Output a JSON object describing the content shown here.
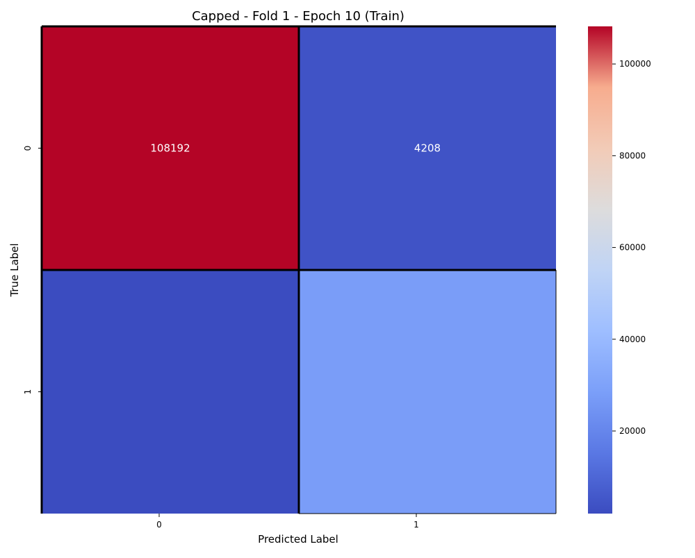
{
  "chart_data": {
    "type": "heatmap",
    "title": "Capped - Fold 1 - Epoch 10 (Train)",
    "xlabel": "Predicted Label",
    "ylabel": "True Label",
    "x_categories": [
      "0",
      "1"
    ],
    "y_categories": [
      "0",
      "1"
    ],
    "values": [
      [
        108192,
        4208
      ],
      [
        2000,
        28000
      ]
    ],
    "cell_labels": [
      [
        "108192",
        "4208"
      ],
      [
        "",
        ""
      ]
    ],
    "colormap": "coolwarm",
    "color_range": [
      2000,
      108192
    ],
    "colorbar_ticks": [
      20000,
      40000,
      60000,
      80000,
      100000
    ],
    "colorbar_tick_labels": [
      "20000",
      "40000",
      "60000",
      "80000",
      "100000"
    ],
    "cell_border_color": "#000000"
  }
}
